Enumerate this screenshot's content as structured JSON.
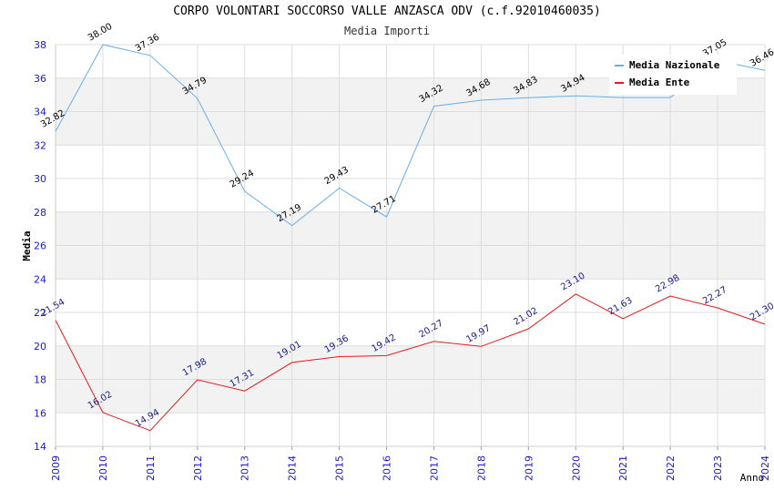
{
  "chart_data": {
    "type": "line",
    "title": "CORPO VOLONTARI SOCCORSO VALLE ANZASCA ODV (c.f.92010460035)",
    "subtitle": "Media Importi",
    "xlabel": "Anno",
    "ylabel": "Media",
    "categories": [
      "2009",
      "2010",
      "2011",
      "2012",
      "2013",
      "2014",
      "2015",
      "2016",
      "2017",
      "2018",
      "2019",
      "2020",
      "2021",
      "2022",
      "2023",
      "2024"
    ],
    "ylim": [
      14,
      38
    ],
    "yticks": [
      14,
      16,
      18,
      20,
      22,
      24,
      26,
      28,
      30,
      32,
      34,
      36,
      38
    ],
    "grid": true,
    "legend_position": "top-right",
    "series": [
      {
        "name": "Media Nazionale",
        "color": "#6aaee8",
        "label_color": "#000000",
        "values": [
          32.82,
          38.0,
          37.36,
          34.79,
          29.24,
          27.19,
          29.43,
          27.71,
          34.32,
          34.68,
          34.83,
          34.94,
          34.84,
          34.84,
          37.05,
          36.46
        ],
        "labels": [
          "32.82",
          "38.00",
          "37.36",
          "34.79",
          "29.24",
          "27.19",
          "29.43",
          "27.71",
          "34.32",
          "34.68",
          "34.83",
          "34.94",
          "",
          "",
          "37.05",
          "36.46"
        ]
      },
      {
        "name": "Media Ente",
        "color": "#e8191a",
        "label_color": "#1a1a8c",
        "values": [
          21.54,
          16.02,
          14.94,
          17.98,
          17.31,
          19.01,
          19.36,
          19.42,
          20.27,
          19.97,
          21.02,
          23.1,
          21.63,
          22.98,
          22.27,
          21.3
        ],
        "labels": [
          "21.54",
          "16.02",
          "14.94",
          "17.98",
          "17.31",
          "19.01",
          "19.36",
          "19.42",
          "20.27",
          "19.97",
          "21.02",
          "23.10",
          "21.63",
          "22.98",
          "22.27",
          "21.30"
        ]
      }
    ],
    "colors": {
      "axis_tick_labels": "#1a1acc",
      "band_fill": "#f2f2f2",
      "grid_line": "#dddddd"
    }
  }
}
